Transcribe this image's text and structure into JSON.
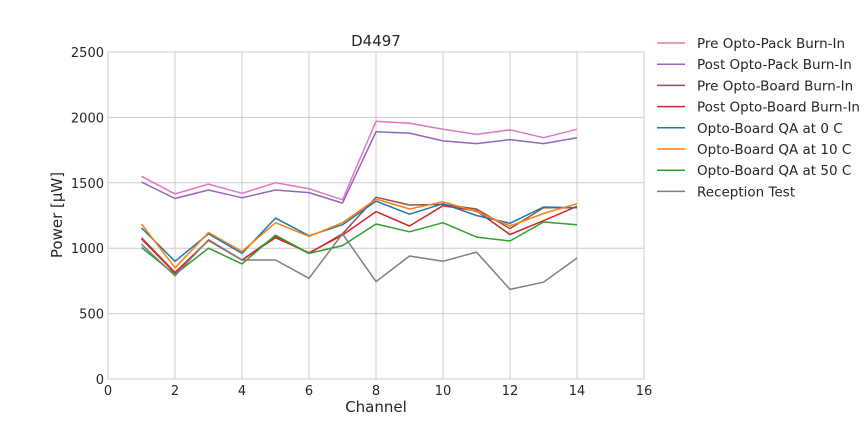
{
  "chart_data": {
    "type": "line",
    "title": "D4497",
    "xlabel": "Channel",
    "ylabel": "Power [μW]",
    "xlim": [
      0,
      16
    ],
    "ylim": [
      0,
      2500
    ],
    "xticks": [
      0,
      2,
      4,
      6,
      8,
      10,
      12,
      14,
      16
    ],
    "yticks": [
      0,
      500,
      1000,
      1500,
      2000,
      2500
    ],
    "grid": true,
    "legend_position": "outside-right",
    "x": [
      1,
      2,
      3,
      4,
      5,
      6,
      7,
      8,
      9,
      10,
      11,
      12,
      13,
      14
    ],
    "series": [
      {
        "name": "Pre Opto-Pack Burn-In",
        "color": "#e377c2",
        "values": [
          1550,
          1415,
          1490,
          1420,
          1500,
          1455,
          1370,
          1970,
          1955,
          1910,
          1870,
          1905,
          1845,
          1910
        ]
      },
      {
        "name": "Post Opto-Pack Burn-In",
        "color": "#9467bd",
        "values": [
          1505,
          1380,
          1445,
          1385,
          1445,
          1425,
          1345,
          1890,
          1880,
          1820,
          1800,
          1830,
          1800,
          1845
        ]
      },
      {
        "name": "Pre Opto-Board Burn-In",
        "color": "#8c564b",
        "values": [
          1080,
          815,
          1060,
          910,
          1090,
          960,
          1110,
          1390,
          1330,
          1335,
          1300,
          1150,
          1310,
          1310
        ]
      },
      {
        "name": "Post Opto-Board Burn-In",
        "color": "#d62728",
        "values": [
          1070,
          810,
          1060,
          910,
          1080,
          965,
          1100,
          1280,
          1170,
          1325,
          1285,
          1105,
          1210,
          1320
        ]
      },
      {
        "name": "Opto-Board QA at 0 C",
        "color": "#1f77b4",
        "values": [
          1155,
          900,
          1110,
          960,
          1230,
          1095,
          1180,
          1360,
          1260,
          1340,
          1250,
          1190,
          1315,
          1310
        ]
      },
      {
        "name": "Opto-Board QA at 10 C",
        "color": "#ff7f0e",
        "values": [
          1185,
          850,
          1120,
          975,
          1195,
          1090,
          1195,
          1375,
          1300,
          1355,
          1280,
          1170,
          1265,
          1340
        ]
      },
      {
        "name": "Opto-Board QA at 50 C",
        "color": "#2ca02c",
        "values": [
          1005,
          800,
          1000,
          880,
          1100,
          960,
          1020,
          1185,
          1125,
          1195,
          1085,
          1055,
          1200,
          1180
        ]
      },
      {
        "name": "Reception Test",
        "color": "#7f7f7f",
        "values": [
          1030,
          790,
          1065,
          910,
          910,
          770,
          1110,
          745,
          940,
          900,
          970,
          685,
          740,
          925
        ]
      }
    ]
  }
}
